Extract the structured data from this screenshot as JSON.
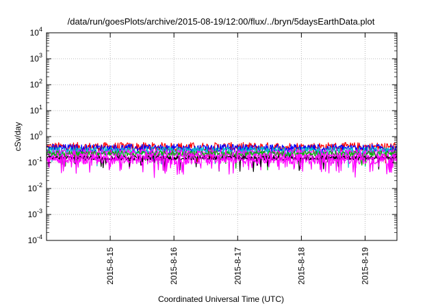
{
  "chart_data": {
    "type": "line",
    "title": "/data/run/goesPlots/archive/2015-08-19/12:00/flux/../bryn/5daysEarthData.plot",
    "xlabel": "Coordinated Universal Time (UTC)",
    "ylabel": "cSv/day",
    "yscale": "log",
    "ylim": [
      0.0001,
      10000
    ],
    "y_ticks": [
      {
        "value": 0.0001,
        "base": "10",
        "exp": "-4"
      },
      {
        "value": 0.001,
        "base": "10",
        "exp": "-3"
      },
      {
        "value": 0.01,
        "base": "10",
        "exp": "-2"
      },
      {
        "value": 0.1,
        "base": "10",
        "exp": "-1"
      },
      {
        "value": 1,
        "base": "10",
        "exp": "0"
      },
      {
        "value": 10,
        "base": "10",
        "exp": "1"
      },
      {
        "value": 100,
        "base": "10",
        "exp": "2"
      },
      {
        "value": 1000,
        "base": "10",
        "exp": "3"
      },
      {
        "value": 10000,
        "base": "10",
        "exp": "4"
      }
    ],
    "xlim": [
      "2015-08-14T00:00",
      "2015-08-19T12:00"
    ],
    "x_ticks": [
      {
        "value": "2015-08-15T00:00",
        "label": "2015-8-15"
      },
      {
        "value": "2015-08-16T00:00",
        "label": "2015-8-16"
      },
      {
        "value": "2015-08-17T00:00",
        "label": "2015-8-17"
      },
      {
        "value": "2015-08-18T00:00",
        "label": "2015-8-18"
      },
      {
        "value": "2015-08-19T00:00",
        "label": "2015-8-19"
      }
    ],
    "grid": true,
    "series": [
      {
        "color": "#ff0000",
        "base": 0.4,
        "amp": 0.35,
        "dips": 0.02
      },
      {
        "color": "#0000ff",
        "base": 0.36,
        "amp": 0.3,
        "dips": 0.02
      },
      {
        "color": "#00c8c8",
        "base": 0.28,
        "amp": 0.3,
        "dips": 0.03
      },
      {
        "color": "#ff00ff",
        "base": 0.24,
        "amp": 0.25,
        "dips": 0.03
      },
      {
        "color": "#00b000",
        "base": 0.22,
        "amp": 0.22,
        "dips": 0.03
      },
      {
        "color": "#ff00ff",
        "base": 0.17,
        "amp": 0.3,
        "dips": 0.08
      },
      {
        "color": "#000000",
        "base": 0.15,
        "amp": 0.18,
        "dips": 0.04
      },
      {
        "color": "#ff00ff",
        "base": 0.13,
        "amp": 0.35,
        "dips": 0.1
      }
    ]
  }
}
